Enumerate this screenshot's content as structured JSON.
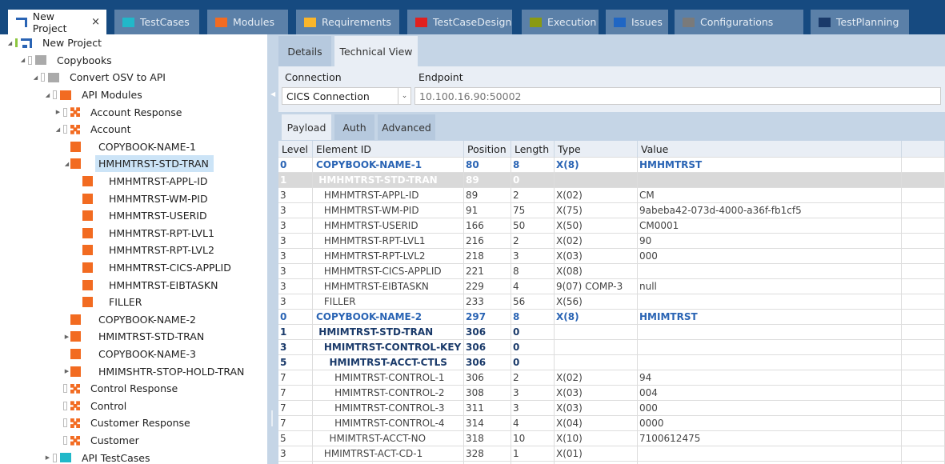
{
  "colors": {
    "topbar": "#164a80",
    "tab": "#5b80a8",
    "accent_blue": "#2a64b4",
    "selected_tree": "#cce4f7",
    "panel": "#c5d5e6"
  },
  "tabs": [
    {
      "label": "New Project",
      "icon": "project-icon",
      "color": "#2a64b4",
      "active": true,
      "closable": true
    },
    {
      "label": "TestCases",
      "icon": "folder-icon",
      "color": "#21b8c9"
    },
    {
      "label": "Modules",
      "icon": "folder-icon",
      "color": "#f26b21"
    },
    {
      "label": "Requirements",
      "icon": "folder-icon",
      "color": "#fbb62a"
    },
    {
      "label": "TestCaseDesign",
      "icon": "folder-icon",
      "color": "#e0201f"
    },
    {
      "label": "Execution",
      "icon": "folder-icon",
      "color": "#8a9a12"
    },
    {
      "label": "Issues",
      "icon": "folder-icon",
      "color": "#1f66c4"
    },
    {
      "label": "Configurations",
      "icon": "configuration-icon",
      "color": "#7a7a7a"
    },
    {
      "label": "TestPlanning",
      "icon": "test-planning-icon",
      "color": "#1a3a6a"
    }
  ],
  "close_glyph": "×",
  "tree": [
    {
      "label": "New Project",
      "depth": 0,
      "icon": "project",
      "expander": "expanded",
      "checkbox": false
    },
    {
      "label": "Copybooks",
      "depth": 1,
      "icon": "folder-gray",
      "expander": "expanded",
      "checkbox": true
    },
    {
      "label": "Convert OSV to API",
      "depth": 2,
      "icon": "folder-gray",
      "expander": "expanded",
      "checkbox": true
    },
    {
      "label": "API Modules",
      "depth": 3,
      "icon": "folder-orange",
      "expander": "expanded",
      "checkbox": true
    },
    {
      "label": "Account Response",
      "depth": 4,
      "icon": "module",
      "expander": "collapsed",
      "checkbox": true
    },
    {
      "label": "Account",
      "depth": 4,
      "icon": "module",
      "expander": "expanded",
      "checkbox": true
    },
    {
      "label": "COPYBOOK-NAME-1",
      "depth": 5,
      "icon": "square",
      "expander": "none",
      "checkbox": false
    },
    {
      "label": "HMHMTRST-STD-TRAN",
      "depth": 5,
      "icon": "square",
      "expander": "expanded",
      "checkbox": false,
      "selected": true
    },
    {
      "label": "HMHMTRST-APPL-ID",
      "depth": 6,
      "icon": "square",
      "expander": "none",
      "checkbox": false
    },
    {
      "label": "HMHMTRST-WM-PID",
      "depth": 6,
      "icon": "square",
      "expander": "none",
      "checkbox": false
    },
    {
      "label": "HMHMTRST-USERID",
      "depth": 6,
      "icon": "square",
      "expander": "none",
      "checkbox": false
    },
    {
      "label": "HMHMTRST-RPT-LVL1",
      "depth": 6,
      "icon": "square",
      "expander": "none",
      "checkbox": false
    },
    {
      "label": "HMHMTRST-RPT-LVL2",
      "depth": 6,
      "icon": "square",
      "expander": "none",
      "checkbox": false
    },
    {
      "label": "HMHMTRST-CICS-APPLID",
      "depth": 6,
      "icon": "square",
      "expander": "none",
      "checkbox": false
    },
    {
      "label": "HMHMTRST-EIBTASKN",
      "depth": 6,
      "icon": "square",
      "expander": "none",
      "checkbox": false
    },
    {
      "label": "FILLER",
      "depth": 6,
      "icon": "square",
      "expander": "none",
      "checkbox": false
    },
    {
      "label": "COPYBOOK-NAME-2",
      "depth": 5,
      "icon": "square",
      "expander": "none",
      "checkbox": false
    },
    {
      "label": "HMIMTRST-STD-TRAN",
      "depth": 5,
      "icon": "square",
      "expander": "collapsed",
      "checkbox": false
    },
    {
      "label": "COPYBOOK-NAME-3",
      "depth": 5,
      "icon": "square",
      "expander": "none",
      "checkbox": false
    },
    {
      "label": "HMIMSHTR-STOP-HOLD-TRAN",
      "depth": 5,
      "icon": "square",
      "expander": "collapsed",
      "checkbox": false
    },
    {
      "label": "Control Response",
      "depth": 4,
      "icon": "module",
      "expander": "none",
      "checkbox": true
    },
    {
      "label": "Control",
      "depth": 4,
      "icon": "module",
      "expander": "none",
      "checkbox": true
    },
    {
      "label": "Customer Response",
      "depth": 4,
      "icon": "module",
      "expander": "none",
      "checkbox": true
    },
    {
      "label": "Customer",
      "depth": 4,
      "icon": "module",
      "expander": "none",
      "checkbox": true
    },
    {
      "label": "API TestCases",
      "depth": 3,
      "icon": "folder-teal",
      "expander": "collapsed",
      "checkbox": true
    }
  ],
  "detail_tabs": [
    {
      "label": "Details"
    },
    {
      "label": "Technical View",
      "active": true
    }
  ],
  "connection": {
    "label": "Connection",
    "value": "CICS Connection",
    "dropdown_glyph": "⌄"
  },
  "endpoint": {
    "label": "Endpoint",
    "placeholder": "10.100.16.90:50002"
  },
  "payload_tabs": [
    {
      "label": "Payload",
      "active": true
    },
    {
      "label": "Auth"
    },
    {
      "label": "Advanced"
    }
  ],
  "table": {
    "columns": [
      "Level",
      "Element ID",
      "Position",
      "Length",
      "Type",
      "Value",
      ""
    ],
    "rows": [
      {
        "style": "top",
        "cells": [
          "0",
          "COPYBOOK-NAME-1",
          "80",
          "8",
          "X(8)",
          "HMHMTRST"
        ]
      },
      {
        "style": "sel",
        "cells": [
          "1",
          "HMHMTRST-STD-TRAN",
          "89",
          "0",
          "",
          ""
        ]
      },
      {
        "style": "norm",
        "cells": [
          "3",
          "HMHMTRST-APPL-ID",
          "89",
          "2",
          "X(02)",
          "CM"
        ]
      },
      {
        "style": "norm",
        "cells": [
          "3",
          "HMHMTRST-WM-PID",
          "91",
          "75",
          "X(75)",
          "9abeba42-073d-4000-a36f-fb1cf5"
        ]
      },
      {
        "style": "norm",
        "cells": [
          "3",
          "HMHMTRST-USERID",
          "166",
          "50",
          "X(50)",
          "CM0001"
        ]
      },
      {
        "style": "norm",
        "cells": [
          "3",
          "HMHMTRST-RPT-LVL1",
          "216",
          "2",
          "X(02)",
          "90"
        ]
      },
      {
        "style": "norm",
        "cells": [
          "3",
          "HMHMTRST-RPT-LVL2",
          "218",
          "3",
          "X(03)",
          "000"
        ]
      },
      {
        "style": "norm",
        "cells": [
          "3",
          "HMHMTRST-CICS-APPLID",
          "221",
          "8",
          "X(08)",
          ""
        ]
      },
      {
        "style": "norm",
        "cells": [
          "3",
          "HMHMTRST-EIBTASKN",
          "229",
          "4",
          "9(07) COMP-3",
          "null"
        ]
      },
      {
        "style": "norm",
        "cells": [
          "3",
          "FILLER",
          "233",
          "56",
          "X(56)",
          ""
        ]
      },
      {
        "style": "top",
        "cells": [
          "0",
          "COPYBOOK-NAME-2",
          "297",
          "8",
          "X(8)",
          "HMIMTRST"
        ]
      },
      {
        "style": "grp",
        "cells": [
          "1",
          "HMIMTRST-STD-TRAN",
          "306",
          "0",
          "",
          ""
        ]
      },
      {
        "style": "grp",
        "cells": [
          "3",
          "HMIMTRST-CONTROL-KEY",
          "306",
          "0",
          "",
          ""
        ]
      },
      {
        "style": "grp",
        "cells": [
          "5",
          "HMIMTRST-ACCT-CTLS",
          "306",
          "0",
          "",
          ""
        ]
      },
      {
        "style": "norm",
        "cells": [
          "7",
          "HMIMTRST-CONTROL-1",
          "306",
          "2",
          "X(02)",
          "94"
        ]
      },
      {
        "style": "norm",
        "cells": [
          "7",
          "HMIMTRST-CONTROL-2",
          "308",
          "3",
          "X(03)",
          "004"
        ]
      },
      {
        "style": "norm",
        "cells": [
          "7",
          "HMIMTRST-CONTROL-3",
          "311",
          "3",
          "X(03)",
          "000"
        ]
      },
      {
        "style": "norm",
        "cells": [
          "7",
          "HMIMTRST-CONTROL-4",
          "314",
          "4",
          "X(04)",
          "0000"
        ]
      },
      {
        "style": "norm",
        "cells": [
          "5",
          "HMIMTRST-ACCT-NO",
          "318",
          "10",
          "X(10)",
          "7100612475"
        ]
      },
      {
        "style": "norm",
        "cells": [
          "3",
          "HMIMTRST-ACT-CD-1",
          "328",
          "1",
          "X(01)",
          ""
        ]
      },
      {
        "style": "norm",
        "cells": [
          "",
          "",
          "",
          "",
          "",
          ""
        ]
      }
    ]
  }
}
